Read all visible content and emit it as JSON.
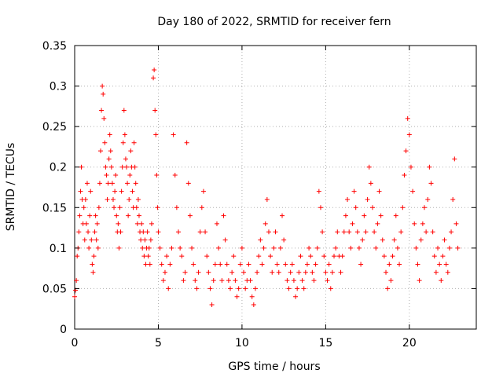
{
  "chart_data": {
    "type": "scatter",
    "title": "Day 180 of 2022, SRMTID for receiver fern",
    "xlabel": "GPS time / hours",
    "ylabel": "SRMTID / TECUs",
    "xlim": [
      0,
      24
    ],
    "ylim": [
      0,
      0.35
    ],
    "xticks": [
      "0",
      "5",
      "10",
      "15",
      "20"
    ],
    "yticks": [
      "0",
      "0.05",
      "0.1",
      "0.15",
      "0.2",
      "0.25",
      "0.3",
      "0.35"
    ],
    "grid": true,
    "marker": "+",
    "color": "#ff0000",
    "series": [
      {
        "points": [
          [
            0.0,
            0.04
          ],
          [
            0.05,
            0.048
          ],
          [
            0.1,
            0.06
          ],
          [
            0.15,
            0.09
          ],
          [
            0.2,
            0.1
          ],
          [
            0.25,
            0.12
          ],
          [
            0.3,
            0.14
          ],
          [
            0.35,
            0.17
          ],
          [
            0.4,
            0.2
          ],
          [
            0.45,
            0.16
          ],
          [
            0.5,
            0.13
          ],
          [
            0.55,
            0.15
          ],
          [
            0.6,
            0.11
          ],
          [
            0.65,
            0.16
          ],
          [
            0.7,
            0.13
          ],
          [
            0.75,
            0.18
          ],
          [
            0.8,
            0.12
          ],
          [
            0.85,
            0.1
          ],
          [
            0.9,
            0.14
          ],
          [
            0.95,
            0.17
          ],
          [
            1.0,
            0.11
          ],
          [
            1.05,
            0.08
          ],
          [
            1.1,
            0.07
          ],
          [
            1.15,
            0.09
          ],
          [
            1.2,
            0.12
          ],
          [
            1.25,
            0.14
          ],
          [
            1.3,
            0.11
          ],
          [
            1.35,
            0.13
          ],
          [
            1.4,
            0.1
          ],
          [
            1.45,
            0.15
          ],
          [
            1.5,
            0.18
          ],
          [
            1.55,
            0.22
          ],
          [
            1.6,
            0.27
          ],
          [
            1.65,
            0.3
          ],
          [
            1.7,
            0.29
          ],
          [
            1.75,
            0.26
          ],
          [
            1.8,
            0.23
          ],
          [
            1.85,
            0.2
          ],
          [
            1.9,
            0.19
          ],
          [
            1.95,
            0.16
          ],
          [
            2.0,
            0.18
          ],
          [
            2.05,
            0.21
          ],
          [
            2.1,
            0.24
          ],
          [
            2.15,
            0.22
          ],
          [
            2.2,
            0.2
          ],
          [
            2.25,
            0.18
          ],
          [
            2.3,
            0.16
          ],
          [
            2.35,
            0.15
          ],
          [
            2.4,
            0.17
          ],
          [
            2.45,
            0.19
          ],
          [
            2.5,
            0.14
          ],
          [
            2.55,
            0.12
          ],
          [
            2.6,
            0.13
          ],
          [
            2.65,
            0.1
          ],
          [
            2.7,
            0.15
          ],
          [
            2.75,
            0.12
          ],
          [
            2.8,
            0.17
          ],
          [
            2.85,
            0.2
          ],
          [
            2.9,
            0.23
          ],
          [
            2.95,
            0.27
          ],
          [
            3.0,
            0.24
          ],
          [
            3.05,
            0.21
          ],
          [
            3.1,
            0.2
          ],
          [
            3.15,
            0.18
          ],
          [
            3.2,
            0.14
          ],
          [
            3.25,
            0.16
          ],
          [
            3.3,
            0.19
          ],
          [
            3.35,
            0.22
          ],
          [
            3.4,
            0.2
          ],
          [
            3.45,
            0.17
          ],
          [
            3.5,
            0.15
          ],
          [
            3.55,
            0.23
          ],
          [
            3.6,
            0.2
          ],
          [
            3.65,
            0.18
          ],
          [
            3.7,
            0.15
          ],
          [
            3.75,
            0.13
          ],
          [
            3.8,
            0.16
          ],
          [
            3.85,
            0.14
          ],
          [
            3.9,
            0.12
          ],
          [
            3.95,
            0.11
          ],
          [
            4.0,
            0.13
          ],
          [
            4.05,
            0.1
          ],
          [
            4.1,
            0.12
          ],
          [
            4.15,
            0.09
          ],
          [
            4.2,
            0.11
          ],
          [
            4.25,
            0.08
          ],
          [
            4.3,
            0.1
          ],
          [
            4.35,
            0.12
          ],
          [
            4.4,
            0.09
          ],
          [
            4.45,
            0.1
          ],
          [
            4.5,
            0.08
          ],
          [
            4.55,
            0.11
          ],
          [
            4.6,
            0.13
          ],
          [
            4.7,
            0.31
          ],
          [
            4.75,
            0.32
          ],
          [
            4.8,
            0.27
          ],
          [
            4.85,
            0.24
          ],
          [
            4.9,
            0.19
          ],
          [
            4.95,
            0.15
          ],
          [
            5.0,
            0.12
          ],
          [
            5.1,
            0.1
          ],
          [
            5.2,
            0.08
          ],
          [
            5.3,
            0.06
          ],
          [
            5.4,
            0.07
          ],
          [
            5.5,
            0.09
          ],
          [
            5.6,
            0.05
          ],
          [
            5.7,
            0.08
          ],
          [
            5.8,
            0.1
          ],
          [
            5.9,
            0.24
          ],
          [
            6.0,
            0.19
          ],
          [
            6.1,
            0.15
          ],
          [
            6.2,
            0.12
          ],
          [
            6.3,
            0.1
          ],
          [
            6.4,
            0.09
          ],
          [
            6.5,
            0.06
          ],
          [
            6.6,
            0.07
          ],
          [
            6.7,
            0.23
          ],
          [
            6.8,
            0.18
          ],
          [
            6.9,
            0.14
          ],
          [
            7.0,
            0.1
          ],
          [
            7.1,
            0.08
          ],
          [
            7.2,
            0.06
          ],
          [
            7.3,
            0.05
          ],
          [
            7.4,
            0.07
          ],
          [
            7.5,
            0.12
          ],
          [
            7.6,
            0.15
          ],
          [
            7.7,
            0.17
          ],
          [
            7.8,
            0.12
          ],
          [
            7.9,
            0.09
          ],
          [
            8.0,
            0.07
          ],
          [
            8.1,
            0.05
          ],
          [
            8.2,
            0.03
          ],
          [
            8.3,
            0.06
          ],
          [
            8.4,
            0.08
          ],
          [
            8.5,
            0.13
          ],
          [
            8.6,
            0.1
          ],
          [
            8.7,
            0.08
          ],
          [
            8.8,
            0.06
          ],
          [
            8.9,
            0.14
          ],
          [
            9.0,
            0.11
          ],
          [
            9.1,
            0.08
          ],
          [
            9.2,
            0.06
          ],
          [
            9.3,
            0.05
          ],
          [
            9.4,
            0.07
          ],
          [
            9.5,
            0.09
          ],
          [
            9.6,
            0.06
          ],
          [
            9.7,
            0.04
          ],
          [
            9.8,
            0.05
          ],
          [
            9.9,
            0.08
          ],
          [
            10.0,
            0.1
          ],
          [
            10.1,
            0.07
          ],
          [
            10.2,
            0.05
          ],
          [
            10.3,
            0.06
          ],
          [
            10.4,
            0.08
          ],
          [
            10.5,
            0.06
          ],
          [
            10.6,
            0.04
          ],
          [
            10.7,
            0.03
          ],
          [
            10.8,
            0.05
          ],
          [
            10.9,
            0.07
          ],
          [
            11.0,
            0.09
          ],
          [
            11.1,
            0.11
          ],
          [
            11.2,
            0.08
          ],
          [
            11.3,
            0.1
          ],
          [
            11.4,
            0.13
          ],
          [
            11.5,
            0.16
          ],
          [
            11.6,
            0.12
          ],
          [
            11.7,
            0.09
          ],
          [
            11.8,
            0.07
          ],
          [
            11.9,
            0.1
          ],
          [
            12.0,
            0.12
          ],
          [
            12.1,
            0.08
          ],
          [
            12.2,
            0.07
          ],
          [
            12.3,
            0.1
          ],
          [
            12.4,
            0.14
          ],
          [
            12.5,
            0.11
          ],
          [
            12.6,
            0.08
          ],
          [
            12.7,
            0.06
          ],
          [
            12.8,
            0.05
          ],
          [
            12.9,
            0.07
          ],
          [
            13.0,
            0.08
          ],
          [
            13.1,
            0.06
          ],
          [
            13.2,
            0.04
          ],
          [
            13.3,
            0.05
          ],
          [
            13.4,
            0.07
          ],
          [
            13.5,
            0.09
          ],
          [
            13.6,
            0.06
          ],
          [
            13.7,
            0.05
          ],
          [
            13.8,
            0.07
          ],
          [
            13.9,
            0.08
          ],
          [
            14.0,
            0.1
          ],
          [
            14.1,
            0.09
          ],
          [
            14.2,
            0.07
          ],
          [
            14.3,
            0.06
          ],
          [
            14.4,
            0.08
          ],
          [
            14.5,
            0.1
          ],
          [
            14.6,
            0.17
          ],
          [
            14.7,
            0.15
          ],
          [
            14.8,
            0.12
          ],
          [
            14.9,
            0.09
          ],
          [
            15.0,
            0.07
          ],
          [
            15.1,
            0.06
          ],
          [
            15.2,
            0.08
          ],
          [
            15.3,
            0.05
          ],
          [
            15.4,
            0.07
          ],
          [
            15.5,
            0.09
          ],
          [
            15.6,
            0.1
          ],
          [
            15.7,
            0.12
          ],
          [
            15.8,
            0.09
          ],
          [
            15.9,
            0.07
          ],
          [
            16.0,
            0.09
          ],
          [
            16.1,
            0.12
          ],
          [
            16.2,
            0.14
          ],
          [
            16.3,
            0.16
          ],
          [
            16.4,
            0.12
          ],
          [
            16.5,
            0.1
          ],
          [
            16.6,
            0.13
          ],
          [
            16.7,
            0.17
          ],
          [
            16.8,
            0.15
          ],
          [
            16.9,
            0.12
          ],
          [
            17.0,
            0.1
          ],
          [
            17.1,
            0.08
          ],
          [
            17.2,
            0.11
          ],
          [
            17.3,
            0.14
          ],
          [
            17.4,
            0.12
          ],
          [
            17.5,
            0.16
          ],
          [
            17.6,
            0.2
          ],
          [
            17.7,
            0.18
          ],
          [
            17.8,
            0.15
          ],
          [
            17.9,
            0.12
          ],
          [
            18.0,
            0.1
          ],
          [
            18.1,
            0.13
          ],
          [
            18.2,
            0.17
          ],
          [
            18.3,
            0.14
          ],
          [
            18.4,
            0.11
          ],
          [
            18.5,
            0.09
          ],
          [
            18.6,
            0.07
          ],
          [
            18.7,
            0.05
          ],
          [
            18.8,
            0.08
          ],
          [
            18.9,
            0.06
          ],
          [
            19.0,
            0.09
          ],
          [
            19.1,
            0.11
          ],
          [
            19.2,
            0.14
          ],
          [
            19.3,
            0.1
          ],
          [
            19.4,
            0.08
          ],
          [
            19.5,
            0.12
          ],
          [
            19.6,
            0.15
          ],
          [
            19.7,
            0.19
          ],
          [
            19.8,
            0.22
          ],
          [
            19.9,
            0.26
          ],
          [
            20.0,
            0.24
          ],
          [
            20.1,
            0.2
          ],
          [
            20.2,
            0.17
          ],
          [
            20.3,
            0.13
          ],
          [
            20.4,
            0.1
          ],
          [
            20.5,
            0.08
          ],
          [
            20.6,
            0.06
          ],
          [
            20.7,
            0.11
          ],
          [
            20.8,
            0.13
          ],
          [
            20.9,
            0.15
          ],
          [
            21.0,
            0.12
          ],
          [
            21.1,
            0.16
          ],
          [
            21.2,
            0.2
          ],
          [
            21.3,
            0.18
          ],
          [
            21.4,
            0.12
          ],
          [
            21.5,
            0.09
          ],
          [
            21.6,
            0.07
          ],
          [
            21.7,
            0.1
          ],
          [
            21.8,
            0.08
          ],
          [
            21.9,
            0.06
          ],
          [
            22.0,
            0.09
          ],
          [
            22.1,
            0.11
          ],
          [
            22.2,
            0.08
          ],
          [
            22.3,
            0.07
          ],
          [
            22.4,
            0.1
          ],
          [
            22.5,
            0.12
          ],
          [
            22.6,
            0.16
          ],
          [
            22.7,
            0.21
          ],
          [
            22.8,
            0.13
          ],
          [
            22.9,
            0.1
          ]
        ]
      }
    ]
  }
}
